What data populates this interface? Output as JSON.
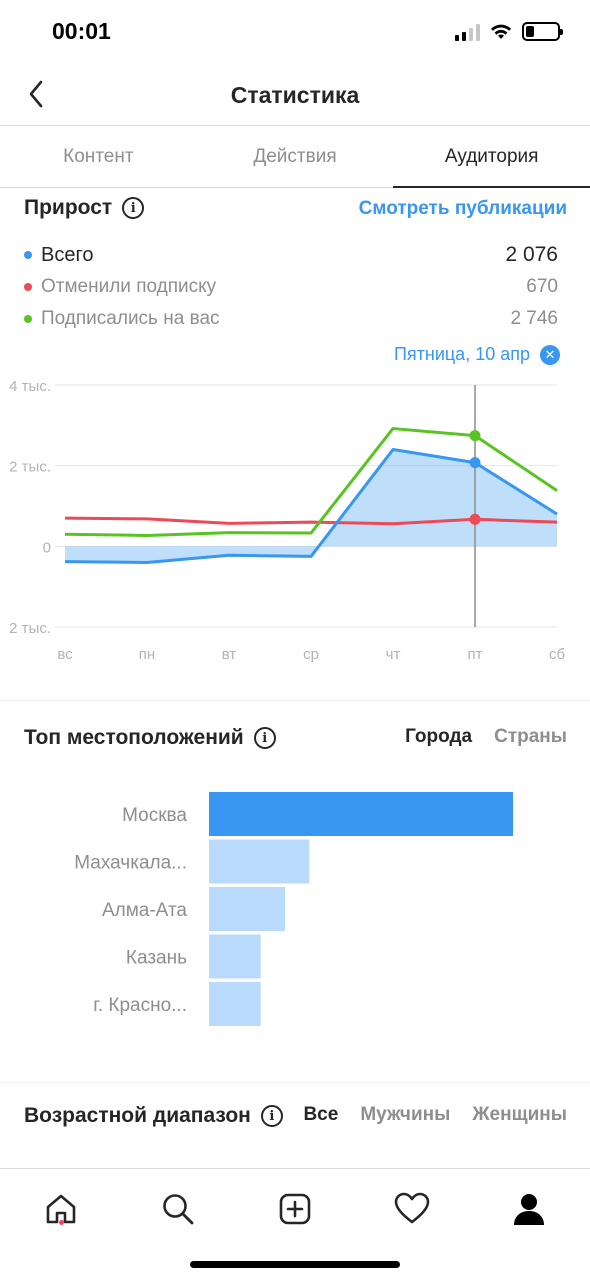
{
  "status_bar": {
    "time": "00:01"
  },
  "header": {
    "title": "Статистика"
  },
  "tabs": [
    {
      "label": "Контент",
      "active": false
    },
    {
      "label": "Действия",
      "active": false
    },
    {
      "label": "Аудитория",
      "active": true
    }
  ],
  "growth": {
    "title": "Прирост",
    "view_posts": "Смотреть публикации",
    "legend": [
      {
        "label": "Всего",
        "value": "2 076",
        "color": "#3897f0"
      },
      {
        "label": "Отменили подписку",
        "value": "670",
        "color": "#ed4956"
      },
      {
        "label": "Подписались на вас",
        "value": "2 746",
        "color": "#58c322"
      }
    ],
    "selected_date": "Пятница, 10 апр"
  },
  "chart_data": [
    {
      "type": "line",
      "categories": [
        "вс",
        "пн",
        "вт",
        "ср",
        "чт",
        "пт",
        "сб"
      ],
      "yticks": [
        {
          "value": 4000,
          "label": "4 тыс."
        },
        {
          "value": 2000,
          "label": "2 тыс."
        },
        {
          "value": 0,
          "label": "0"
        },
        {
          "value": -2000,
          "label": "2 тыс."
        }
      ],
      "ylim": [
        -2000,
        4000
      ],
      "selected_index": 5,
      "series": [
        {
          "name": "Всего",
          "values": [
            -380,
            -400,
            -220,
            -250,
            2400,
            2076,
            800
          ],
          "color": "#3897f0"
        },
        {
          "name": "Отменили подписку",
          "values": [
            700,
            680,
            570,
            600,
            560,
            670,
            600
          ],
          "color": "#ed4956"
        },
        {
          "name": "Подписались на вас",
          "values": [
            300,
            270,
            340,
            330,
            2920,
            2746,
            1380
          ],
          "color": "#58c322"
        }
      ]
    },
    {
      "type": "bar",
      "categories": [
        "Москва",
        "Махачкала...",
        "Алма-Ата",
        "Казань",
        "г. Красно..."
      ],
      "values": [
        100,
        33,
        25,
        17,
        17
      ],
      "colors": [
        "#3897f0",
        "#b9dafb",
        "#b9dafb",
        "#b9dafb",
        "#b9dafb"
      ]
    }
  ],
  "locations": {
    "title": "Топ местоположений",
    "toggle_cities": "Города",
    "toggle_countries": "Страны"
  },
  "age": {
    "title": "Возрастной диапазон",
    "toggle_all": "Все",
    "toggle_men": "Мужчины",
    "toggle_women": "Женщины"
  },
  "nav": {
    "icons": [
      "home-icon",
      "search-icon",
      "add-icon",
      "heart-icon",
      "profile-icon"
    ],
    "notification_color": "#ed4956"
  }
}
